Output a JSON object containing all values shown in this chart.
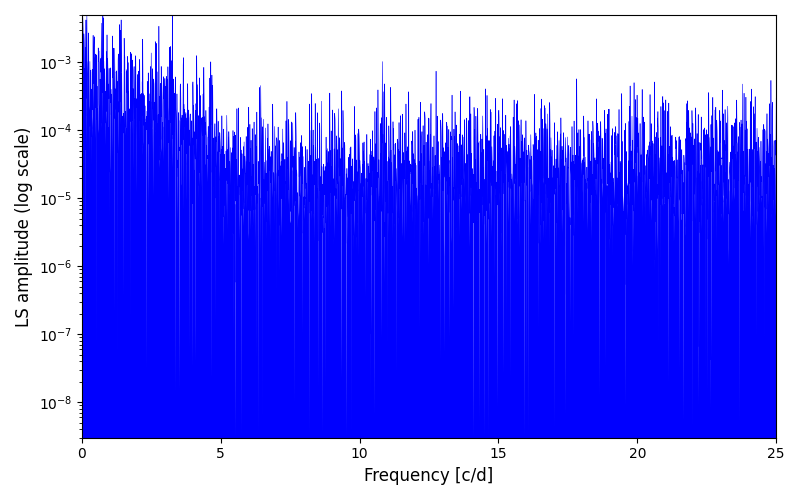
{
  "xlabel": "Frequency [c/d]",
  "ylabel": "LS amplitude (log scale)",
  "line_color": "#0000ff",
  "background_color": "#ffffff",
  "xmin": 0,
  "xmax": 25,
  "ymin": 3e-09,
  "ymax": 0.005,
  "n_points": 3000,
  "seed": 12345
}
